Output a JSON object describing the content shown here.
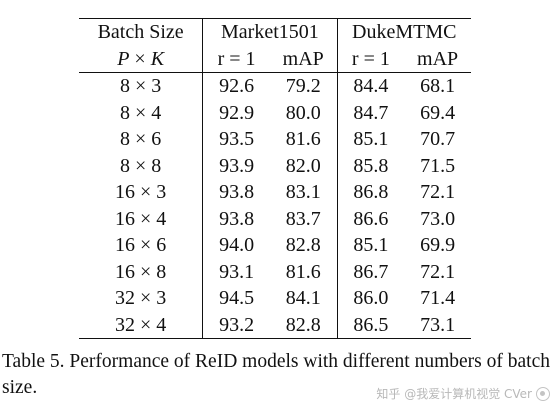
{
  "table": {
    "header": {
      "batch_size": "Batch Size",
      "pk_left": "P",
      "pk_times": "×",
      "pk_right": "K",
      "dataset1": "Market1501",
      "dataset2": "DukeMTMC",
      "metric_r1": "r = 1",
      "metric_map": "mAP"
    },
    "rows": [
      {
        "p": "8",
        "k": "3",
        "m_r1": "92.6",
        "m_map": "79.2",
        "d_r1": "84.4",
        "d_map": "68.1"
      },
      {
        "p": "8",
        "k": "4",
        "m_r1": "92.9",
        "m_map": "80.0",
        "d_r1": "84.7",
        "d_map": "69.4"
      },
      {
        "p": "8",
        "k": "6",
        "m_r1": "93.5",
        "m_map": "81.6",
        "d_r1": "85.1",
        "d_map": "70.7"
      },
      {
        "p": "8",
        "k": "8",
        "m_r1": "93.9",
        "m_map": "82.0",
        "d_r1": "85.8",
        "d_map": "71.5"
      },
      {
        "p": "16",
        "k": "3",
        "m_r1": "93.8",
        "m_map": "83.1",
        "d_r1": "86.8",
        "d_map": "72.1"
      },
      {
        "p": "16",
        "k": "4",
        "m_r1": "93.8",
        "m_map": "83.7",
        "d_r1": "86.6",
        "d_map": "73.0"
      },
      {
        "p": "16",
        "k": "6",
        "m_r1": "94.0",
        "m_map": "82.8",
        "d_r1": "85.1",
        "d_map": "69.9"
      },
      {
        "p": "16",
        "k": "8",
        "m_r1": "93.1",
        "m_map": "81.6",
        "d_r1": "86.7",
        "d_map": "72.1"
      },
      {
        "p": "32",
        "k": "3",
        "m_r1": "94.5",
        "m_map": "84.1",
        "d_r1": "86.0",
        "d_map": "71.4"
      },
      {
        "p": "32",
        "k": "4",
        "m_r1": "93.2",
        "m_map": "82.8",
        "d_r1": "86.5",
        "d_map": "73.1"
      }
    ],
    "times": "×"
  },
  "caption": "Table 5. Performance of ReID models with different numbers of batch size.",
  "watermark": {
    "text": "知乎 @我爱计算机视觉 CVer",
    "icon": "cver-logo-icon"
  }
}
